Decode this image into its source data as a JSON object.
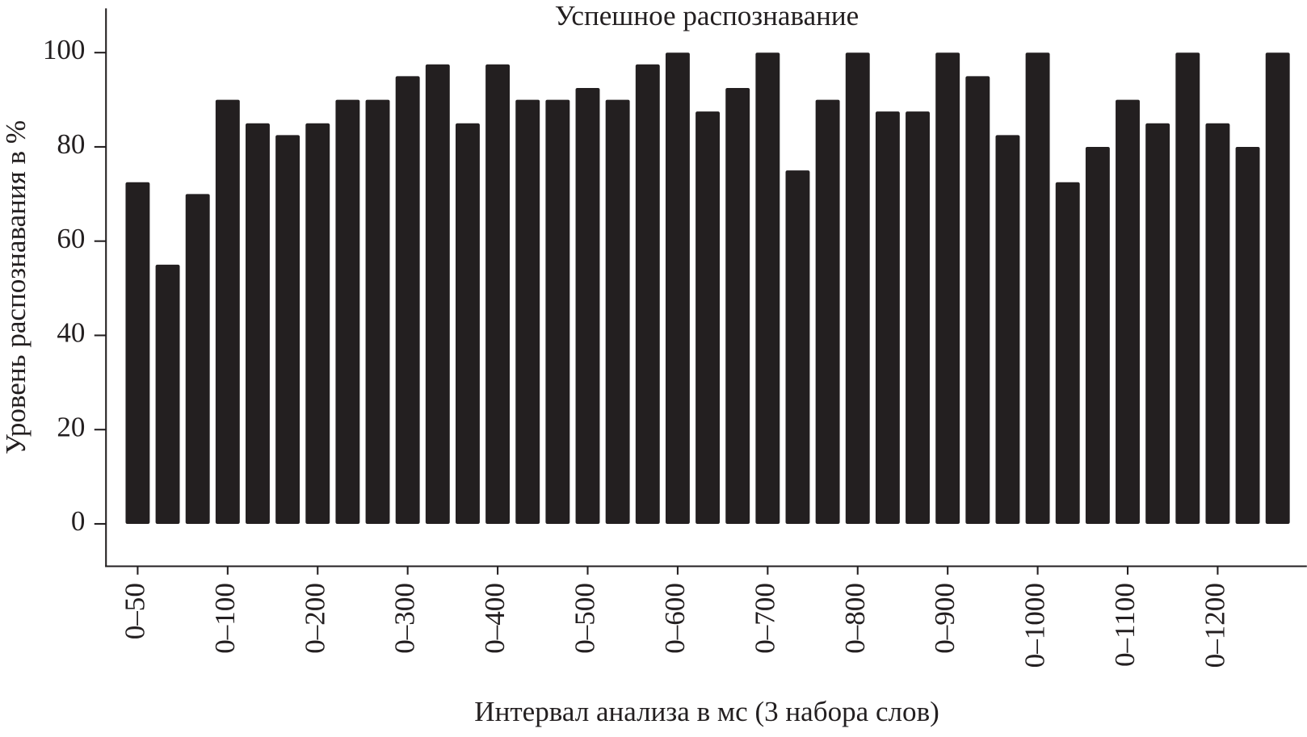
{
  "chart_data": {
    "type": "bar",
    "title": "Успешное распознавание",
    "x_label": "Интервал анализа в мс (3 набора слов)",
    "y_label": "Уровень распознавания в %",
    "categories": [
      "0–50",
      null,
      null,
      "0–100",
      null,
      null,
      "0–200",
      null,
      null,
      "0–300",
      null,
      null,
      "0–400",
      null,
      null,
      "0–500",
      null,
      null,
      "0–600",
      null,
      null,
      "0–700",
      null,
      null,
      "0–800",
      null,
      null,
      "0–900",
      null,
      null,
      "0–1000",
      null,
      null,
      "0–1100",
      null,
      null,
      "0–1200",
      null,
      null
    ],
    "values": [
      72.5,
      55,
      70,
      90,
      85,
      82.5,
      85,
      90,
      90,
      95,
      97.5,
      85,
      97.5,
      90,
      90,
      92.5,
      90,
      97.5,
      100,
      87.5,
      92.5,
      100,
      75,
      90,
      100,
      87.5,
      87.5,
      100,
      95,
      82.5,
      100,
      72.5,
      80,
      90,
      85,
      100,
      85,
      80,
      100
    ],
    "color": "#231f20",
    "ylim": [
      -9,
      109.4
    ],
    "yticks": [
      0,
      20,
      40,
      60,
      80,
      100
    ]
  }
}
